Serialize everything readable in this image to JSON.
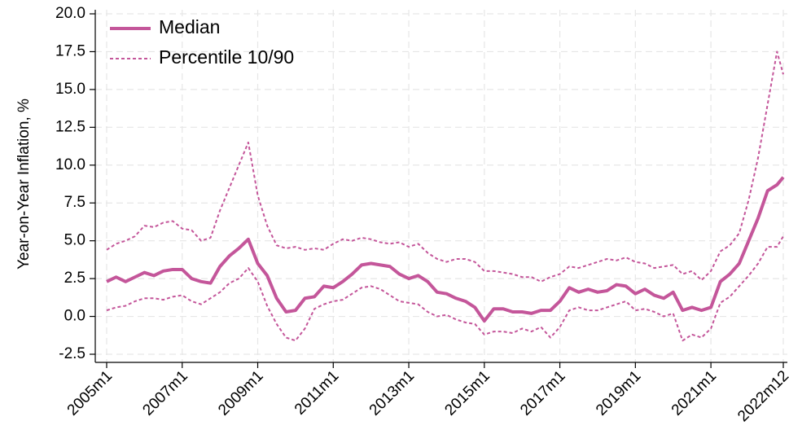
{
  "chart_data": {
    "type": "line",
    "ylabel": "Year-on-Year Inflation, %",
    "x": [
      "2005m1",
      "2005m4",
      "2005m7",
      "2005m10",
      "2006m1",
      "2006m4",
      "2006m7",
      "2006m10",
      "2007m1",
      "2007m4",
      "2007m7",
      "2007m10",
      "2008m1",
      "2008m4",
      "2008m7",
      "2008m10",
      "2009m1",
      "2009m4",
      "2009m7",
      "2009m10",
      "2010m1",
      "2010m4",
      "2010m7",
      "2010m10",
      "2011m1",
      "2011m4",
      "2011m7",
      "2011m10",
      "2012m1",
      "2012m4",
      "2012m7",
      "2012m10",
      "2013m1",
      "2013m4",
      "2013m7",
      "2013m10",
      "2014m1",
      "2014m4",
      "2014m7",
      "2014m10",
      "2015m1",
      "2015m4",
      "2015m7",
      "2015m10",
      "2016m1",
      "2016m4",
      "2016m7",
      "2016m10",
      "2017m1",
      "2017m4",
      "2017m7",
      "2017m10",
      "2018m1",
      "2018m4",
      "2018m7",
      "2018m10",
      "2019m1",
      "2019m4",
      "2019m7",
      "2019m10",
      "2020m1",
      "2020m4",
      "2020m7",
      "2020m10",
      "2021m1",
      "2021m4",
      "2021m7",
      "2021m10",
      "2022m1",
      "2022m4",
      "2022m7",
      "2022m10",
      "2022m12"
    ],
    "series": [
      {
        "name": "Median",
        "color": "#c4569a",
        "style": "solid",
        "values": [
          2.3,
          2.6,
          2.3,
          2.6,
          2.9,
          2.7,
          3.0,
          3.1,
          3.1,
          2.5,
          2.3,
          2.2,
          3.3,
          4.0,
          4.5,
          5.1,
          3.5,
          2.7,
          1.2,
          0.3,
          0.4,
          1.2,
          1.3,
          2.0,
          1.9,
          2.3,
          2.8,
          3.4,
          3.5,
          3.4,
          3.3,
          2.8,
          2.5,
          2.7,
          2.3,
          1.6,
          1.5,
          1.2,
          1.0,
          0.6,
          -0.3,
          0.5,
          0.5,
          0.3,
          0.3,
          0.2,
          0.4,
          0.4,
          1.0,
          1.9,
          1.6,
          1.8,
          1.6,
          1.7,
          2.1,
          2.0,
          1.5,
          1.8,
          1.4,
          1.2,
          1.6,
          0.4,
          0.6,
          0.4,
          0.6,
          2.3,
          2.8,
          3.5,
          5.0,
          6.5,
          8.3,
          8.7,
          9.2
        ]
      },
      {
        "name": "Percentile 10/90",
        "color": "#c4569a",
        "style": "dashed",
        "values": [
          4.4,
          4.8,
          5.0,
          5.3,
          6.0,
          5.9,
          6.2,
          6.3,
          5.8,
          5.7,
          5.0,
          5.2,
          7.0,
          8.5,
          10.0,
          11.5,
          8.0,
          6.0,
          4.7,
          4.5,
          4.6,
          4.4,
          4.5,
          4.4,
          4.8,
          5.1,
          5.0,
          5.2,
          5.1,
          4.9,
          4.8,
          4.9,
          4.6,
          4.8,
          4.2,
          3.8,
          3.6,
          3.8,
          3.8,
          3.6,
          3.0,
          3.0,
          2.9,
          2.8,
          2.6,
          2.6,
          2.3,
          2.6,
          2.8,
          3.3,
          3.2,
          3.4,
          3.6,
          3.8,
          3.7,
          3.9,
          3.6,
          3.5,
          3.2,
          3.3,
          3.4,
          2.8,
          3.0,
          2.4,
          3.0,
          4.3,
          4.7,
          5.5,
          7.7,
          10.5,
          14.0,
          17.5,
          16.0
        ]
      },
      {
        "color": "#c4569a",
        "style": "dashed",
        "values": [
          0.4,
          0.6,
          0.7,
          1.0,
          1.2,
          1.2,
          1.1,
          1.3,
          1.4,
          1.0,
          0.8,
          1.2,
          1.6,
          2.2,
          2.5,
          3.2,
          2.3,
          0.7,
          -0.5,
          -1.4,
          -1.6,
          -0.8,
          0.5,
          0.8,
          1.0,
          1.1,
          1.5,
          1.9,
          2.0,
          1.8,
          1.4,
          1.0,
          0.9,
          0.8,
          0.3,
          0.0,
          0.1,
          -0.2,
          -0.4,
          -0.5,
          -1.2,
          -1.0,
          -1.0,
          -1.1,
          -0.8,
          -1.0,
          -0.7,
          -1.4,
          -0.7,
          0.4,
          0.6,
          0.4,
          0.4,
          0.6,
          0.8,
          1.0,
          0.4,
          0.5,
          0.3,
          0.0,
          0.2,
          -1.6,
          -1.2,
          -1.4,
          -0.8,
          0.9,
          1.3,
          2.0,
          2.7,
          3.5,
          4.6,
          4.6,
          5.3
        ]
      }
    ],
    "xlim": [
      "2005m1",
      "2022m12"
    ],
    "xticks": [
      "2005m1",
      "2007m1",
      "2009m1",
      "2011m1",
      "2013m1",
      "2015m1",
      "2017m1",
      "2019m1",
      "2021m1",
      "2022m12"
    ],
    "ylim": [
      -2.5,
      20
    ],
    "yticks": [
      -2.5,
      {
        "value": 0,
        "label": "0.0"
      },
      2.5,
      {
        "value": 5,
        "label": "5.0"
      },
      7.5,
      {
        "value": 10,
        "label": "10.0"
      },
      12.5,
      {
        "value": 15,
        "label": "15.0"
      },
      17.5,
      {
        "value": 20,
        "label": "20.0"
      }
    ],
    "grid": true,
    "legend": "upper left"
  }
}
